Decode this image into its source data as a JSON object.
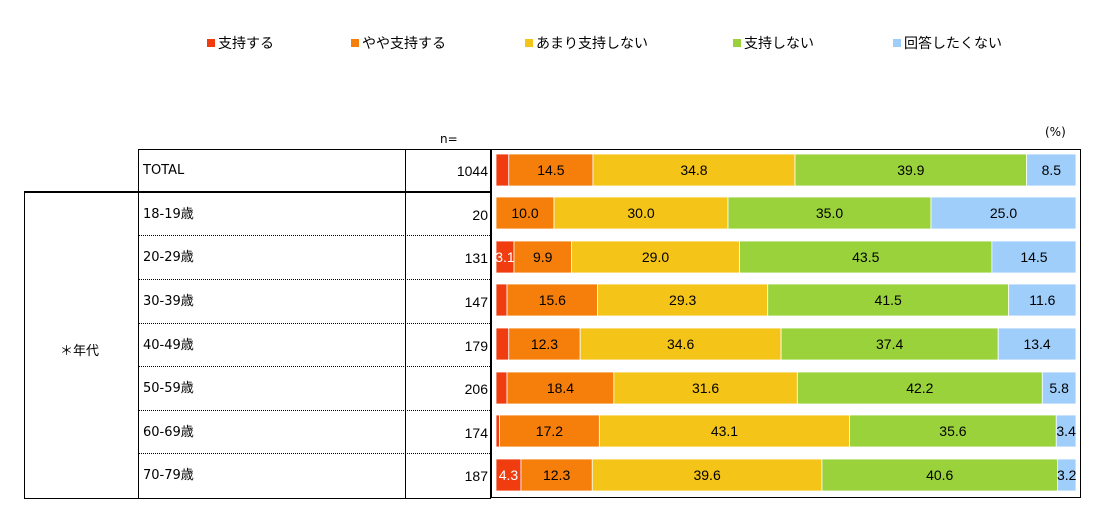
{
  "unit_label": "(%)",
  "n_header": "n=",
  "group_label": "＊年代",
  "legend": [
    {
      "label": "支持する",
      "color": "#f03c0f"
    },
    {
      "label": "やや支持する",
      "color": "#f57f0a"
    },
    {
      "label": "あまり支持しない",
      "color": "#f5c419"
    },
    {
      "label": "支持しない",
      "color": "#9ad23c"
    },
    {
      "label": "回答したくない",
      "color": "#9fcefa"
    }
  ],
  "chart_data": {
    "type": "bar",
    "orientation": "horizontal",
    "stacked": true,
    "xlim": [
      0,
      100
    ],
    "unit": "(%)",
    "categories": [
      "TOTAL",
      "18-19歳",
      "20-29歳",
      "30-39歳",
      "40-49歳",
      "50-59歳",
      "60-69歳",
      "70-79歳"
    ],
    "n": [
      "1044",
      "20",
      "131",
      "147",
      "179",
      "206",
      "174",
      "187"
    ],
    "series": [
      {
        "name": "支持する",
        "color": "#f03c0f",
        "values": [
          2.2,
          0.0,
          3.1,
          1.9,
          2.2,
          1.9,
          0.6,
          4.3
        ],
        "labels": [
          "",
          "",
          "3.1",
          "",
          "",
          "",
          "",
          "4.3"
        ]
      },
      {
        "name": "やや支持する",
        "color": "#f57f0a",
        "values": [
          14.5,
          10.0,
          9.9,
          15.6,
          12.3,
          18.4,
          17.2,
          12.3
        ],
        "labels": [
          "14.5",
          "10.0",
          "9.9",
          "15.6",
          "12.3",
          "18.4",
          "17.2",
          "12.3"
        ]
      },
      {
        "name": "あまり支持しない",
        "color": "#f5c419",
        "values": [
          34.8,
          30.0,
          29.0,
          29.3,
          34.6,
          31.6,
          43.1,
          39.6
        ],
        "labels": [
          "34.8",
          "30.0",
          "29.0",
          "29.3",
          "34.6",
          "31.6",
          "43.1",
          "39.6"
        ]
      },
      {
        "name": "支持しない",
        "color": "#9ad23c",
        "values": [
          39.9,
          35.0,
          43.5,
          41.5,
          37.4,
          42.2,
          35.6,
          40.6
        ],
        "labels": [
          "39.9",
          "35.0",
          "43.5",
          "41.5",
          "37.4",
          "42.2",
          "35.6",
          "40.6"
        ]
      },
      {
        "name": "回答したくない",
        "color": "#9fcefa",
        "values": [
          8.5,
          25.0,
          14.5,
          11.6,
          13.4,
          5.8,
          3.4,
          3.2
        ],
        "labels": [
          "8.5",
          "25.0",
          "14.5",
          "11.6",
          "13.4",
          "5.8",
          "3.4",
          "3.2"
        ]
      }
    ]
  }
}
